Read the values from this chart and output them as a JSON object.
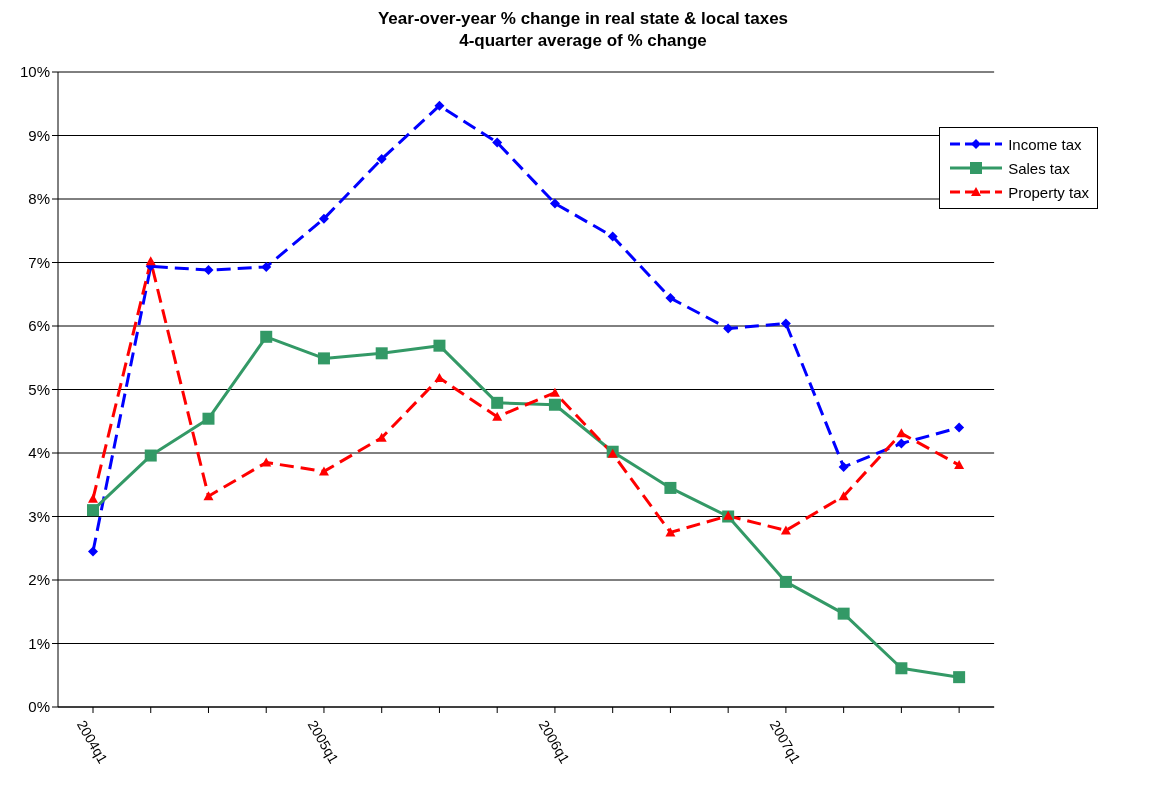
{
  "chart_data": {
    "type": "line",
    "title": "Year-over-year % change in real state & local taxes",
    "subtitle": "4-quarter average of % change",
    "categories": [
      "2004q1",
      null,
      null,
      null,
      "2005q1",
      null,
      null,
      null,
      "2006q1",
      null,
      null,
      null,
      "2007q1",
      null,
      null,
      null
    ],
    "series": [
      {
        "name": "Income tax",
        "color": "#0000ff",
        "marker": "diamond",
        "line_style": "dashed",
        "values": [
          2.45,
          6.94,
          6.88,
          6.93,
          7.69,
          8.63,
          9.47,
          8.89,
          7.93,
          7.41,
          6.44,
          5.96,
          6.04,
          3.78,
          4.15,
          4.4
        ]
      },
      {
        "name": "Sales tax",
        "color": "#339966",
        "marker": "square",
        "line_style": "solid",
        "values": [
          3.1,
          3.96,
          4.54,
          5.83,
          5.49,
          5.57,
          5.69,
          4.79,
          4.76,
          4.02,
          3.45,
          3.0,
          1.97,
          1.47,
          0.61,
          0.47
        ]
      },
      {
        "name": "Property tax",
        "color": "#ff0000",
        "marker": "triangle",
        "line_style": "dashed",
        "values": [
          3.28,
          7.02,
          3.32,
          3.85,
          3.71,
          4.24,
          5.18,
          4.57,
          4.95,
          3.99,
          2.75,
          3.01,
          2.78,
          3.32,
          4.31,
          3.81
        ]
      }
    ],
    "ylim": [
      0,
      10
    ],
    "yticks": [
      {
        "value": 0,
        "label": "0%"
      },
      {
        "value": 1,
        "label": "1%"
      },
      {
        "value": 2,
        "label": "2%"
      },
      {
        "value": 3,
        "label": "3%"
      },
      {
        "value": 4,
        "label": "4%"
      },
      {
        "value": 5,
        "label": "5%"
      },
      {
        "value": 6,
        "label": "6%"
      },
      {
        "value": 7,
        "label": "7%"
      },
      {
        "value": 8,
        "label": "8%"
      },
      {
        "value": 9,
        "label": "9%"
      },
      {
        "value": 10,
        "label": "10%"
      }
    ],
    "grid": "y",
    "legend": "top right"
  }
}
